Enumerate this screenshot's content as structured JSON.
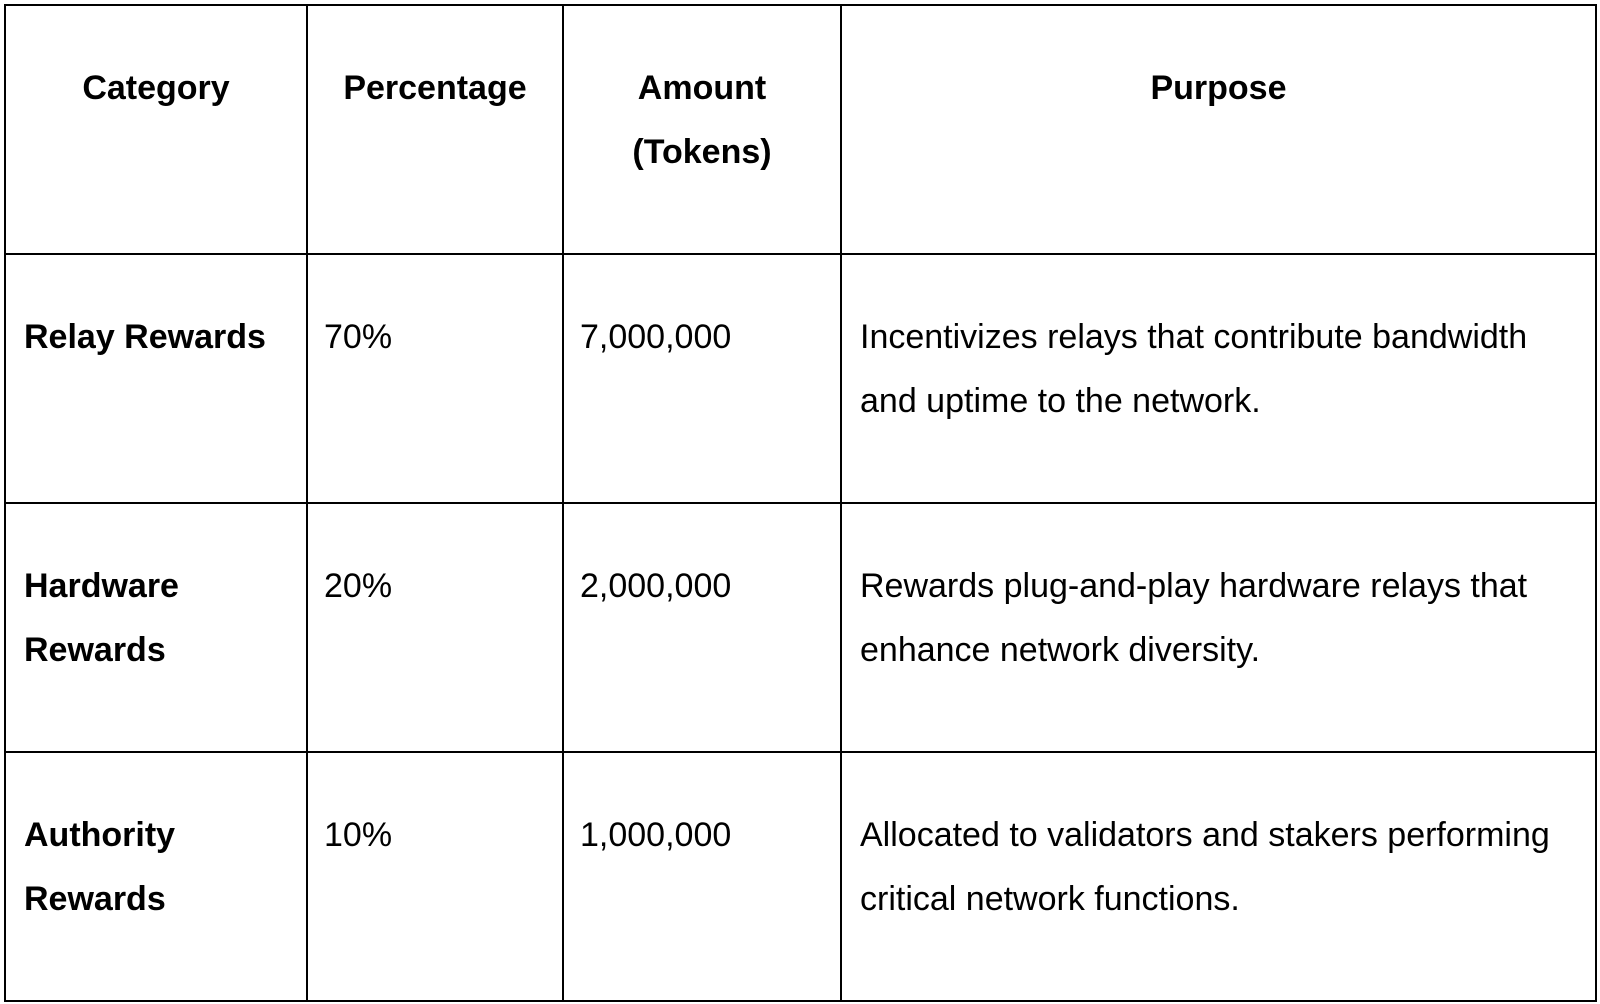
{
  "table": {
    "headers": [
      "Category",
      "Percentage",
      "Amount (Tokens)",
      "Purpose"
    ],
    "rows": [
      {
        "category": "Relay Rewards",
        "percentage": "70%",
        "amount": "7,000,000",
        "purpose": "Incentivizes relays that contribute bandwidth and uptime to the network."
      },
      {
        "category": "Hardware Rewards",
        "percentage": "20%",
        "amount": "2,000,000",
        "purpose": "Rewards plug-and-play hardware relays that enhance network diversity."
      },
      {
        "category": "Authority Rewards",
        "percentage": "10%",
        "amount": "1,000,000",
        "purpose": "Allocated to validators and stakers performing critical network functions."
      }
    ]
  }
}
